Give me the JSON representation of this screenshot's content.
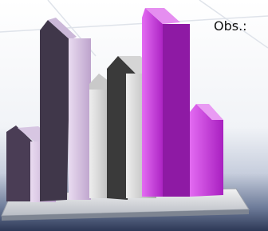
{
  "label": "Obs.:"
}
